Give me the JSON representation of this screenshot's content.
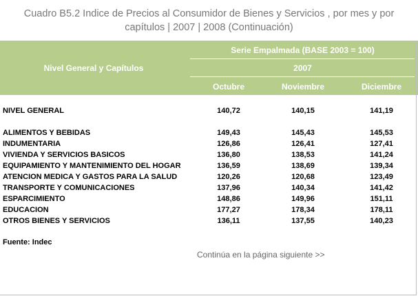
{
  "title": {
    "line1": "Cuadro B5.2 Indice de Precios al Consumidor de Bienes y Servicios , por mes y por",
    "line2": "capítulos | 2007 | 2008 (Continuación)"
  },
  "header": {
    "row_label": "Nivel General y Capítulos",
    "series": "Serie Empalmada (BASE 2003 = 100)",
    "year": "2007",
    "months": [
      "Octubre",
      "Noviembre",
      "Diciembre"
    ]
  },
  "rows": [
    {
      "label": "NIVEL GENERAL",
      "values": [
        "140,72",
        "140,15",
        "141,19"
      ]
    },
    {
      "label": "ALIMENTOS Y BEBIDAS",
      "values": [
        "149,43",
        "145,43",
        "145,53"
      ]
    },
    {
      "label": "INDUMENTARIA",
      "values": [
        "126,86",
        "126,41",
        "127,41"
      ]
    },
    {
      "label": "VIVIENDA Y SERVICIOS BASICOS",
      "values": [
        "136,80",
        "138,53",
        "141,24"
      ]
    },
    {
      "label": "EQUIPAMIENTO Y MANTENIMIENTO DEL HOGAR",
      "values": [
        "136,59",
        "138,69",
        "139,34"
      ]
    },
    {
      "label": "ATENCION MEDICA Y GASTOS PARA LA SALUD",
      "values": [
        "120,26",
        "120,68",
        "123,49"
      ]
    },
    {
      "label": "TRANSPORTE Y COMUNICACIONES",
      "values": [
        "137,96",
        "140,34",
        "141,42"
      ]
    },
    {
      "label": "ESPARCIMIENTO",
      "values": [
        "148,86",
        "149,96",
        "151,11"
      ]
    },
    {
      "label": "EDUCACION",
      "values": [
        "177,27",
        "178,34",
        "178,11"
      ]
    },
    {
      "label": "OTROS BIENES Y SERVICIOS",
      "values": [
        "136,11",
        "137,55",
        "140,23"
      ]
    }
  ],
  "source": "Fuente: Indec",
  "next_link": "Continúa en la página siguiente >>",
  "colors": {
    "header_bg": "#b7cd8c",
    "header_text": "#ffffff",
    "title_text": "#777777"
  }
}
